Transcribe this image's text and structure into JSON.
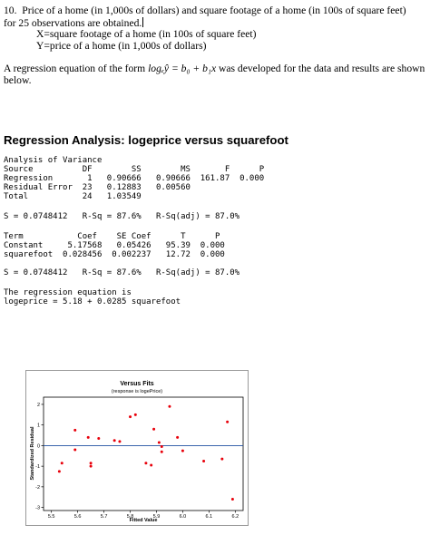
{
  "question": {
    "number": "10.",
    "line1": "Price of a home (in 1,000s of dollars) and square footage of a home (in 100s of square feet)",
    "line2": "for 25 observations are obtained.",
    "x_def": "X=square footage of a home (in 100s of square feet)",
    "y_def": "Y=price of a home (in 1,000s of dollars)"
  },
  "paragraph": {
    "before": "A regression equation of the form ",
    "equation": "logₑŷ = b₀ + b₁x",
    "after": " was developed for the data and results are shown below."
  },
  "heading": "Regression Analysis: logeprice versus squarefoot",
  "output": {
    "anova_title": "Analysis of Variance",
    "anova_lines": [
      "Source          DF        SS        MS       F      P",
      "Regression       1   0.90666   0.90666  161.87  0.000",
      "Residual Error  23   0.12883   0.00560",
      "Total           24   1.03549"
    ],
    "fit1": "S = 0.0748412   R-Sq = 87.6%   R-Sq(adj) = 87.0%",
    "coef_lines": [
      "Term           Coef    SE Coef      T      P",
      "Constant     5.17568   0.05426   95.39  0.000",
      "squarefoot  0.028456  0.002237   12.72  0.000"
    ],
    "fit2": "S = 0.0748412   R-Sq = 87.6%   R-Sq(adj) = 87.0%",
    "eq_title": "The regression equation is",
    "eq_line": "logeprice = 5.18 + 0.0285 squarefoot"
  },
  "chart_data": {
    "type": "scatter",
    "title": "Versus Fits",
    "subtitle": "(response is logePrice)",
    "xlabel": "Fitted Value",
    "ylabel": "Standardized Residual",
    "xlim": [
      5.47,
      6.23
    ],
    "ylim": [
      -3.15,
      2.35
    ],
    "xticks": [
      "5.5",
      "5.6",
      "5.7",
      "5.8",
      "5.9",
      "6.0",
      "6.1",
      "6.2"
    ],
    "yticks": [
      "2",
      "1",
      "0",
      "-1",
      "-2",
      "-3"
    ],
    "reference_line_y": 0,
    "grid": false,
    "marker_color": "#e8000b",
    "points": [
      {
        "x": 5.53,
        "y": -1.25
      },
      {
        "x": 5.54,
        "y": -0.85
      },
      {
        "x": 5.59,
        "y": 0.75
      },
      {
        "x": 5.59,
        "y": -0.2
      },
      {
        "x": 5.64,
        "y": 0.4
      },
      {
        "x": 5.65,
        "y": -0.85
      },
      {
        "x": 5.65,
        "y": -1.0
      },
      {
        "x": 5.68,
        "y": 0.35
      },
      {
        "x": 5.74,
        "y": 0.25
      },
      {
        "x": 5.76,
        "y": 0.2
      },
      {
        "x": 5.8,
        "y": 1.4
      },
      {
        "x": 5.82,
        "y": 1.5
      },
      {
        "x": 5.86,
        "y": -0.85
      },
      {
        "x": 5.88,
        "y": -0.95
      },
      {
        "x": 5.89,
        "y": 0.8
      },
      {
        "x": 5.91,
        "y": 0.15
      },
      {
        "x": 5.92,
        "y": -0.05
      },
      {
        "x": 5.92,
        "y": -0.3
      },
      {
        "x": 5.95,
        "y": 1.9
      },
      {
        "x": 5.98,
        "y": 0.4
      },
      {
        "x": 6.0,
        "y": -0.25
      },
      {
        "x": 6.08,
        "y": -0.75
      },
      {
        "x": 6.15,
        "y": -0.65
      },
      {
        "x": 6.17,
        "y": 1.15
      },
      {
        "x": 6.19,
        "y": -2.6
      }
    ]
  }
}
